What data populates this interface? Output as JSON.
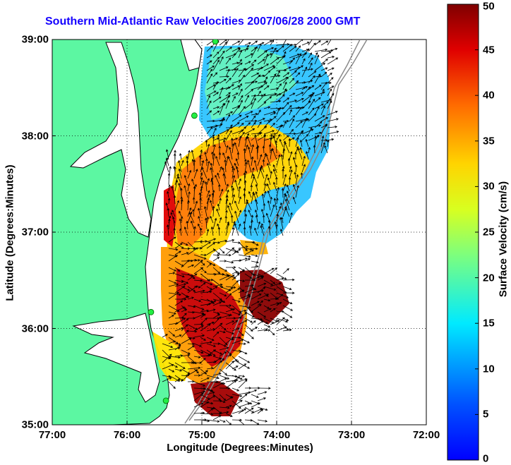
{
  "title": "Southern Mid-Atlantic Raw Velocities 2007/06/28 2000 GMT",
  "xlabel": "Longitude (Degrees:Minutes)",
  "ylabel": "Latitude (Degrees:Minutes)",
  "colorbar_label": "Surface Velocity (cm/s)",
  "x_ticks": [
    "77:00",
    "76:00",
    "75:00",
    "74:00",
    "73:00",
    "72:00"
  ],
  "y_ticks": [
    "39:00",
    "38:00",
    "37:00",
    "36:00",
    "35:00"
  ],
  "colorbar_ticks": [
    "50",
    "45",
    "40",
    "35",
    "30",
    "25",
    "20",
    "15",
    "10",
    "5",
    "0"
  ],
  "colors": {
    "land": "#5cf7a2",
    "title": "#1400ff",
    "station": "#22ee44"
  },
  "chart_data": {
    "type": "heatmap",
    "xlim": [
      -77,
      -72
    ],
    "ylim": [
      35,
      39
    ],
    "clim": [
      0,
      50
    ],
    "colormap": "jet",
    "grid": true,
    "stations": [
      {
        "lon": -74.82,
        "lat": 38.98
      },
      {
        "lon": -75.1,
        "lat": 38.21
      },
      {
        "lon": -75.68,
        "lat": 36.17
      },
      {
        "lon": -75.48,
        "lat": 35.25
      }
    ]
  }
}
